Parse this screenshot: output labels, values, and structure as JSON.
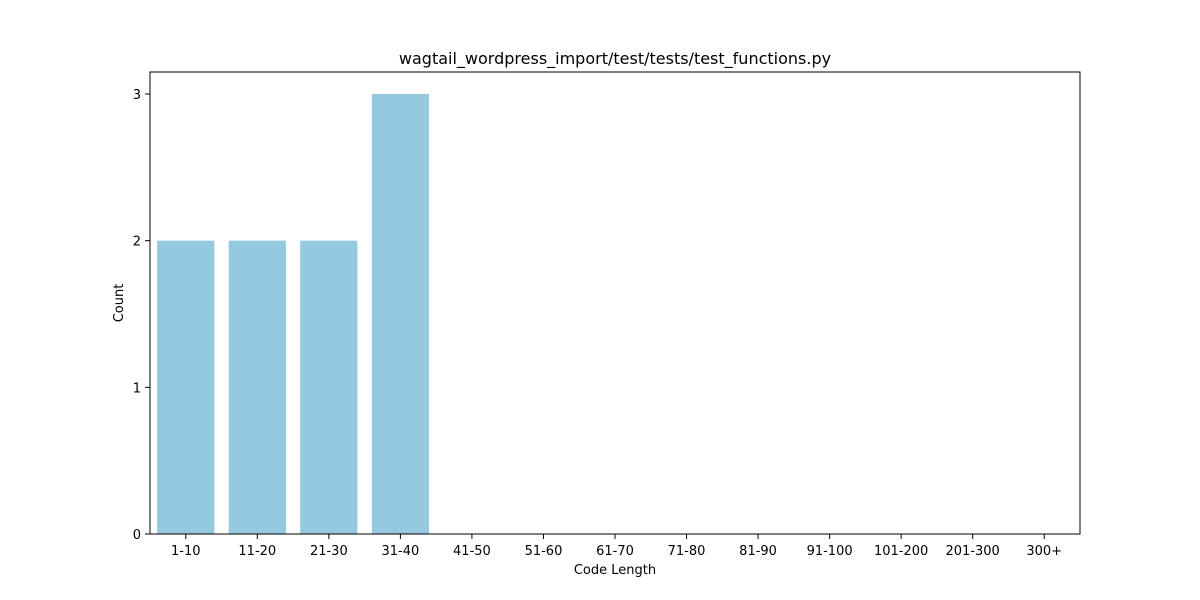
{
  "chart_data": {
    "type": "bar",
    "title": "wagtail_wordpress_import/test/tests/test_functions.py",
    "xlabel": "Code Length",
    "ylabel": "Count",
    "categories": [
      "1-10",
      "11-20",
      "21-30",
      "31-40",
      "41-50",
      "51-60",
      "61-70",
      "71-80",
      "81-90",
      "91-100",
      "101-200",
      "201-300",
      "300+"
    ],
    "values": [
      2,
      2,
      2,
      3,
      0,
      0,
      0,
      0,
      0,
      0,
      0,
      0,
      0
    ],
    "ylim": [
      0,
      3.15
    ],
    "yticks": [
      0,
      1,
      2,
      3
    ],
    "grid": false,
    "bar_color": "#95c9df"
  }
}
